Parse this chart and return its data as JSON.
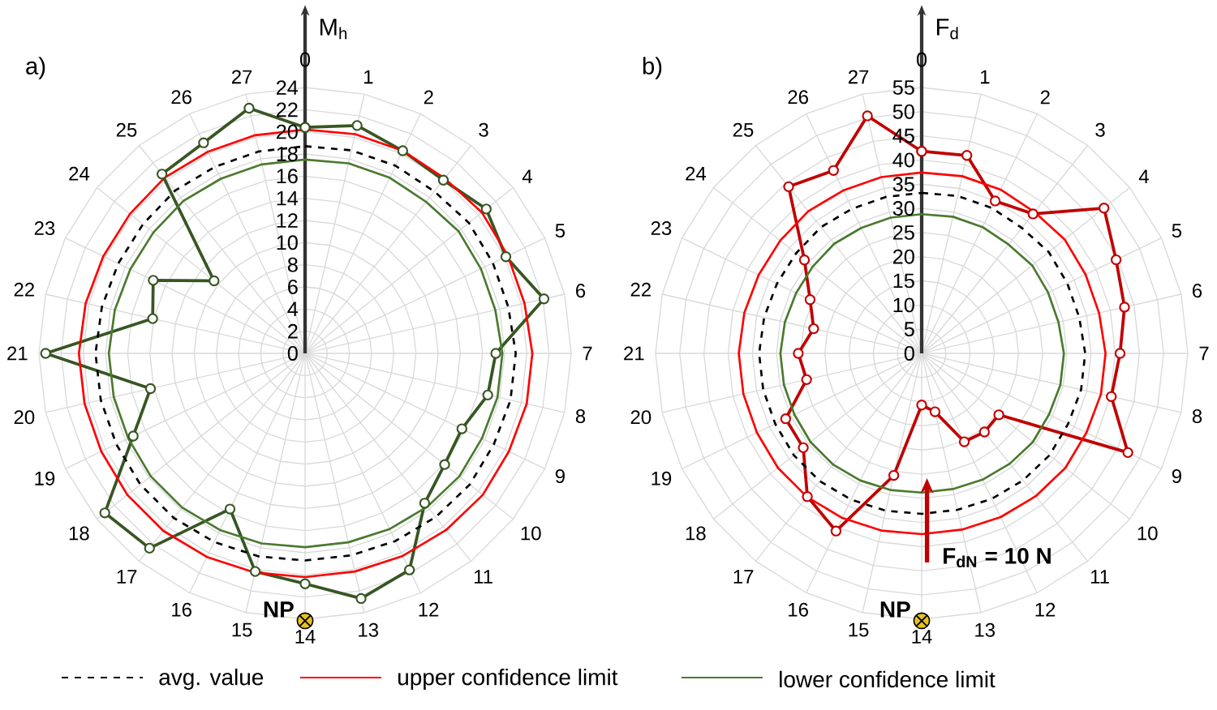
{
  "chart_data": [
    {
      "type": "radar",
      "ylabel": "M$_{h}$",
      "categories": [
        "0",
        "1",
        "2",
        "3",
        "4",
        "5",
        "6",
        "7",
        "8",
        "9",
        "10",
        "11",
        "12",
        "13",
        "14",
        "15",
        "16",
        "17",
        "18",
        "19",
        "20",
        "21",
        "22",
        "23",
        "24",
        "25",
        "26",
        "27"
      ],
      "ylim": [
        0,
        24
      ],
      "yticks": [
        0,
        2,
        4,
        6,
        8,
        10,
        12,
        14,
        16,
        18,
        20,
        22,
        24
      ],
      "grid": true,
      "legend": "bottom",
      "annotations": [
        "a)",
        "NP"
      ],
      "series": [
        {
          "color": "#375623",
          "marker": "circle",
          "line_style": "solid",
          "values": [
            20.4,
            21.1,
            20.3,
            20.0,
            20.9,
            20.1,
            22.1,
            17.2,
            16.9,
            15.7,
            16.1,
            17.3,
            21.7,
            22.7,
            20.8,
            20.2,
            15.6,
            22.5,
            23.1,
            17.2,
            14.3,
            23.4,
            14.1,
            15.2,
            10.5,
            20.7,
            21.1,
            22.7
          ]
        },
        {
          "name": "avg. value",
          "color": "#000000",
          "marker": "none",
          "line_style": "dashed",
          "values": [
            18.7,
            18.8,
            18.8,
            18.7,
            18.9,
            18.8,
            18.8,
            19.0,
            19.0,
            18.9,
            19.0,
            18.9,
            18.8,
            18.7,
            18.7,
            18.8,
            18.9,
            19.0,
            19.0,
            18.9,
            18.9,
            18.9,
            18.8,
            18.7,
            18.7,
            18.8,
            18.7,
            18.7
          ]
        },
        {
          "name": "upper confidence limit",
          "color": "#ff0000",
          "marker": "none",
          "line_style": "solid",
          "values": [
            20.2,
            20.3,
            20.3,
            20.2,
            20.4,
            20.3,
            20.3,
            20.5,
            20.5,
            20.4,
            20.5,
            20.4,
            20.3,
            20.2,
            20.2,
            20.3,
            20.4,
            20.5,
            20.5,
            20.4,
            20.4,
            20.4,
            20.3,
            20.2,
            20.2,
            20.3,
            20.2,
            20.2
          ]
        },
        {
          "name": "lower confidence limit",
          "color": "#4a7a2e",
          "marker": "none",
          "line_style": "solid",
          "values": [
            17.5,
            17.6,
            17.6,
            17.5,
            17.7,
            17.6,
            17.6,
            17.8,
            17.8,
            17.7,
            17.8,
            17.7,
            17.6,
            17.5,
            17.5,
            17.6,
            17.7,
            17.8,
            17.8,
            17.7,
            17.7,
            17.7,
            17.6,
            17.5,
            17.5,
            17.6,
            17.5,
            17.5
          ]
        }
      ]
    },
    {
      "type": "radar",
      "ylabel": "F$_{d}$",
      "categories": [
        "0",
        "1",
        "2",
        "3",
        "4",
        "5",
        "6",
        "7",
        "8",
        "9",
        "10",
        "11",
        "12",
        "13",
        "14",
        "15",
        "16",
        "17",
        "18",
        "19",
        "20",
        "21",
        "22",
        "23",
        "24",
        "25",
        "26",
        "27"
      ],
      "ylim": [
        0,
        55
      ],
      "yticks": [
        0,
        5,
        10,
        15,
        20,
        25,
        30,
        35,
        40,
        45,
        50,
        55
      ],
      "grid": true,
      "annotations": [
        "b)",
        "NP",
        "F$_{dN}$ = 10 N"
      ],
      "series": [
        {
          "color": "#c00000",
          "marker": "circle",
          "line_style": "solid",
          "values": [
            41.8,
            42.0,
            35.0,
            36.9,
            48.2,
            44.6,
            43.0,
            41.0,
            40.2,
            47.3,
            20.4,
            20.8,
            20.3,
            12.4,
            10.7,
            25.9,
            40.8,
            37.9,
            31.3,
            31.2,
            24.4,
            25.5,
            22.9,
            25.6,
            31.0,
            44.1,
            42.0,
            50.4
          ]
        },
        {
          "color": "#000000",
          "marker": "none",
          "line_style": "dashed",
          "values": [
            33.2,
            33.4,
            33.4,
            33.2,
            33.6,
            33.4,
            33.4,
            33.8,
            33.8,
            33.6,
            33.8,
            33.6,
            33.4,
            33.2,
            33.2,
            33.4,
            33.6,
            33.8,
            33.8,
            33.6,
            33.6,
            33.6,
            33.4,
            33.2,
            33.2,
            33.4,
            33.2,
            33.2
          ]
        },
        {
          "color": "#ff0000",
          "marker": "none",
          "line_style": "solid",
          "values": [
            37.4,
            37.6,
            37.6,
            37.4,
            37.8,
            37.6,
            37.6,
            38.0,
            38.0,
            37.8,
            38.0,
            37.8,
            37.6,
            37.4,
            37.4,
            37.6,
            37.8,
            38.0,
            38.0,
            37.8,
            37.8,
            37.8,
            37.6,
            37.4,
            37.4,
            37.6,
            37.4,
            37.4
          ]
        },
        {
          "color": "#4a7a2e",
          "marker": "none",
          "line_style": "solid",
          "values": [
            28.8,
            29.0,
            29.0,
            28.8,
            29.2,
            29.0,
            29.0,
            29.4,
            29.4,
            29.2,
            29.4,
            29.2,
            29.0,
            28.8,
            28.8,
            29.0,
            29.2,
            29.4,
            29.4,
            29.2,
            29.2,
            29.2,
            29.0,
            28.8,
            28.8,
            29.0,
            28.8,
            28.8
          ]
        }
      ]
    }
  ]
}
